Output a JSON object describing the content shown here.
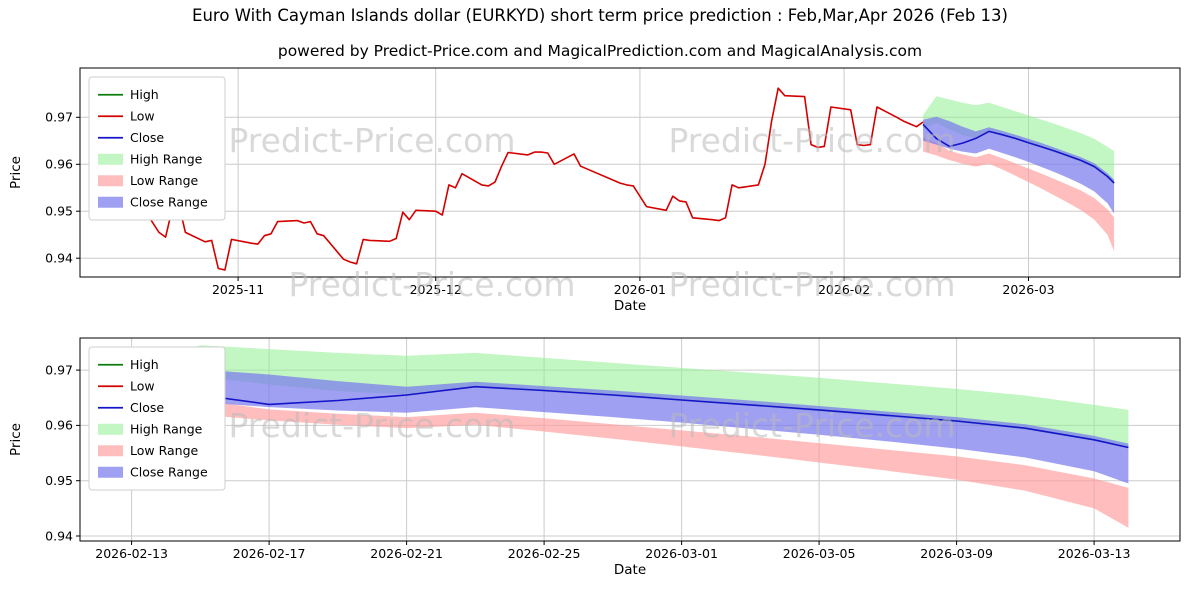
{
  "title": "Euro With Cayman Islands dollar (EURKYD) short term price prediction : Feb,Mar,Apr 2026 (Feb 13)",
  "subtitle": "powered by Predict-Price.com and MagicalPrediction.com and MagicalAnalysis.com",
  "watermark": "Predict-Price.com",
  "colors": {
    "grid": "#cccccc",
    "spine": "#000000",
    "watermark": "#b9b9b9",
    "high": "#0a7d0a",
    "low": "#d40000",
    "close": "#1414c8",
    "high_range": "#90ee90",
    "low_range": "#ff9999",
    "close_range": "#7878ee"
  },
  "legend_entries": [
    {
      "label": "High",
      "type": "line",
      "color_key": "high"
    },
    {
      "label": "Low",
      "type": "line",
      "color_key": "low"
    },
    {
      "label": "Close",
      "type": "line",
      "color_key": "close"
    },
    {
      "label": "High Range",
      "type": "patch",
      "color_key": "high_range",
      "opacity": 0.55
    },
    {
      "label": "Low Range",
      "type": "patch",
      "color_key": "low_range",
      "opacity": 0.65
    },
    {
      "label": "Close Range",
      "type": "patch",
      "color_key": "close_range",
      "opacity": 0.7
    }
  ],
  "forecast": {
    "x": [
      "2026-02-13",
      "2026-02-15",
      "2026-02-17",
      "2026-02-19",
      "2026-02-21",
      "2026-02-23",
      "2026-02-25",
      "2026-02-27",
      "2026-03-01",
      "2026-03-03",
      "2026-03-05",
      "2026-03-07",
      "2026-03-09",
      "2026-03-11",
      "2026-03-13",
      "2026-03-14"
    ],
    "close": {
      "x": [
        "2026-02-13",
        "2026-02-15",
        "2026-02-17",
        "2026-02-19",
        "2026-02-21",
        "2026-02-23",
        "2026-02-25",
        "2026-02-27",
        "2026-03-01",
        "2026-03-03",
        "2026-03-05",
        "2026-03-07",
        "2026-03-09",
        "2026-03-11",
        "2026-03-13",
        "2026-03-14"
      ],
      "y": [
        0.9685,
        0.9655,
        0.9638,
        0.9645,
        0.9655,
        0.967,
        0.9663,
        0.9655,
        0.9646,
        0.9637,
        0.9628,
        0.9618,
        0.9608,
        0.9595,
        0.9574,
        0.956
      ]
    },
    "bands": [
      {
        "name": "High Range",
        "color_key": "high_range",
        "opacity": 0.55,
        "upper": [
          0.9705,
          0.9745,
          0.9738,
          0.9731,
          0.9726,
          0.9731,
          0.9722,
          0.9713,
          0.9704,
          0.9695,
          0.9686,
          0.9676,
          0.9666,
          0.9654,
          0.9637,
          0.9628
        ],
        "lower": [
          0.9675,
          0.9688,
          0.9674,
          0.9662,
          0.9656,
          0.9669,
          0.9661,
          0.9653,
          0.9644,
          0.9635,
          0.9625,
          0.9615,
          0.9605,
          0.9592,
          0.9572,
          0.956
        ]
      },
      {
        "name": "Low Range",
        "color_key": "low_range",
        "opacity": 0.65,
        "upper": [
          0.9657,
          0.9646,
          0.9629,
          0.9621,
          0.9615,
          0.9623,
          0.9613,
          0.9602,
          0.9591,
          0.958,
          0.9568,
          0.9556,
          0.9544,
          0.9528,
          0.9504,
          0.9487
        ],
        "lower": [
          0.9627,
          0.9619,
          0.9609,
          0.9601,
          0.9595,
          0.9601,
          0.9589,
          0.9576,
          0.9562,
          0.9548,
          0.9533,
          0.9518,
          0.9502,
          0.9482,
          0.945,
          0.9415
        ]
      },
      {
        "name": "Close Range",
        "color_key": "close_range",
        "opacity": 0.7,
        "upper": [
          0.9695,
          0.9701,
          0.9692,
          0.968,
          0.967,
          0.9679,
          0.9671,
          0.9663,
          0.9654,
          0.9645,
          0.9635,
          0.9625,
          0.9615,
          0.9602,
          0.9581,
          0.9567
        ],
        "lower": [
          0.965,
          0.9642,
          0.9633,
          0.9627,
          0.9623,
          0.9633,
          0.9624,
          0.9615,
          0.9605,
          0.9594,
          0.9583,
          0.9571,
          0.9558,
          0.9542,
          0.9517,
          0.9495
        ]
      }
    ]
  },
  "chart_data": [
    {
      "type": "line",
      "name": "price-history-with-forecast",
      "xlabel": "Date",
      "ylabel": "Price",
      "ylim": [
        0.936,
        0.9805
      ],
      "xdomain": [
        "2025-10-08",
        "2026-03-24"
      ],
      "xticks": [
        {
          "value": "2025-11-01",
          "label": "2025-11"
        },
        {
          "value": "2025-12-01",
          "label": "2025-12"
        },
        {
          "value": "2026-01-01",
          "label": "2026-01"
        },
        {
          "value": "2026-02-01",
          "label": "2026-02"
        },
        {
          "value": "2026-03-01",
          "label": "2026-03"
        }
      ],
      "yticks": [
        {
          "value": 0.94,
          "label": "0.94"
        },
        {
          "value": 0.95,
          "label": "0.95"
        },
        {
          "value": 0.96,
          "label": "0.96"
        },
        {
          "value": 0.97,
          "label": "0.97"
        }
      ],
      "margins": {
        "l": 80,
        "r": 20,
        "t": 8,
        "b": 38
      },
      "use_forecast_bands": true,
      "watermarks": [
        {
          "fx": 0.265,
          "fy": 0.4
        },
        {
          "fx": 0.665,
          "fy": 0.4
        },
        {
          "fx": 0.32,
          "fy": 1.09
        },
        {
          "fx": 0.665,
          "fy": 1.09
        }
      ],
      "series": [
        {
          "name": "Low",
          "color_key": "low",
          "x": [
            "2025-10-17",
            "2025-10-20",
            "2025-10-21",
            "2025-10-22",
            "2025-10-23",
            "2025-10-24",
            "2025-10-27",
            "2025-10-28",
            "2025-10-29",
            "2025-10-30",
            "2025-10-31",
            "2025-11-03",
            "2025-11-04",
            "2025-11-05",
            "2025-11-06",
            "2025-11-07",
            "2025-11-10",
            "2025-11-11",
            "2025-11-12",
            "2025-11-13",
            "2025-11-14",
            "2025-11-17",
            "2025-11-18",
            "2025-11-19",
            "2025-11-20",
            "2025-11-21",
            "2025-11-24",
            "2025-11-25",
            "2025-11-26",
            "2025-11-27",
            "2025-11-28",
            "2025-12-01",
            "2025-12-02",
            "2025-12-03",
            "2025-12-04",
            "2025-12-05",
            "2025-12-08",
            "2025-12-09",
            "2025-12-10",
            "2025-12-11",
            "2025-12-12",
            "2025-12-15",
            "2025-12-16",
            "2025-12-17",
            "2025-12-18",
            "2025-12-19",
            "2025-12-22",
            "2025-12-23",
            "2025-12-29",
            "2025-12-30",
            "2025-12-31",
            "2026-01-02",
            "2026-01-05",
            "2026-01-06",
            "2026-01-07",
            "2026-01-08",
            "2026-01-09",
            "2026-01-12",
            "2026-01-13",
            "2026-01-14",
            "2026-01-15",
            "2026-01-16",
            "2026-01-19",
            "2026-01-20",
            "2026-01-21",
            "2026-01-22",
            "2026-01-23",
            "2026-01-26",
            "2026-01-27",
            "2026-01-28",
            "2026-01-29",
            "2026-01-30",
            "2026-02-02",
            "2026-02-03",
            "2026-02-04",
            "2026-02-05",
            "2026-02-06",
            "2026-02-09",
            "2026-02-10",
            "2026-02-11",
            "2026-02-12",
            "2026-02-13"
          ],
          "y": [
            0.952,
            0.9455,
            0.9445,
            0.9505,
            0.9515,
            0.9455,
            0.9435,
            0.9438,
            0.9378,
            0.9375,
            0.944,
            0.9432,
            0.943,
            0.9448,
            0.9452,
            0.9478,
            0.948,
            0.9475,
            0.9478,
            0.9452,
            0.9448,
            0.9398,
            0.9392,
            0.9388,
            0.944,
            0.9438,
            0.9436,
            0.9442,
            0.9498,
            0.9482,
            0.9502,
            0.95,
            0.9492,
            0.9556,
            0.955,
            0.958,
            0.9556,
            0.9554,
            0.9562,
            0.9596,
            0.9625,
            0.962,
            0.9626,
            0.9626,
            0.9624,
            0.96,
            0.9622,
            0.9596,
            0.956,
            0.9556,
            0.9554,
            0.951,
            0.9502,
            0.9532,
            0.9522,
            0.952,
            0.9486,
            0.9482,
            0.948,
            0.9486,
            0.9556,
            0.955,
            0.9556,
            0.96,
            0.9692,
            0.9762,
            0.9746,
            0.9744,
            0.9642,
            0.9636,
            0.9638,
            0.9722,
            0.9716,
            0.9642,
            0.964,
            0.9642,
            0.9722,
            0.97,
            0.9692,
            0.9686,
            0.968,
            0.969
          ]
        },
        {
          "name": "Close",
          "color_key": "close",
          "use_forecast_close": true
        }
      ]
    },
    {
      "type": "line",
      "name": "forecast-detail",
      "xlabel": "Date",
      "ylabel": "Price",
      "ylim": [
        0.9391,
        0.9758
      ],
      "xdomain": [
        "2026-02-11T12:00:00Z",
        "2026-03-15T12:00:00Z"
      ],
      "xticks": [
        {
          "value": "2026-02-13",
          "label": "2026-02-13"
        },
        {
          "value": "2026-02-17",
          "label": "2026-02-17"
        },
        {
          "value": "2026-02-21",
          "label": "2026-02-21"
        },
        {
          "value": "2026-02-25",
          "label": "2026-02-25"
        },
        {
          "value": "2026-03-01",
          "label": "2026-03-01"
        },
        {
          "value": "2026-03-05",
          "label": "2026-03-05"
        },
        {
          "value": "2026-03-09",
          "label": "2026-03-09"
        },
        {
          "value": "2026-03-13",
          "label": "2026-03-13"
        }
      ],
      "yticks": [
        {
          "value": 0.94,
          "label": "0.94"
        },
        {
          "value": 0.95,
          "label": "0.95"
        },
        {
          "value": 0.96,
          "label": "0.96"
        },
        {
          "value": 0.97,
          "label": "0.97"
        }
      ],
      "margins": {
        "l": 80,
        "r": 20,
        "t": 13,
        "b": 49
      },
      "use_forecast_bands": true,
      "watermarks": [
        {
          "fx": 0.265,
          "fy": 0.49
        },
        {
          "fx": 0.665,
          "fy": 0.49
        }
      ],
      "series": [
        {
          "name": "Close",
          "color_key": "close",
          "use_forecast_close": true
        }
      ]
    }
  ]
}
